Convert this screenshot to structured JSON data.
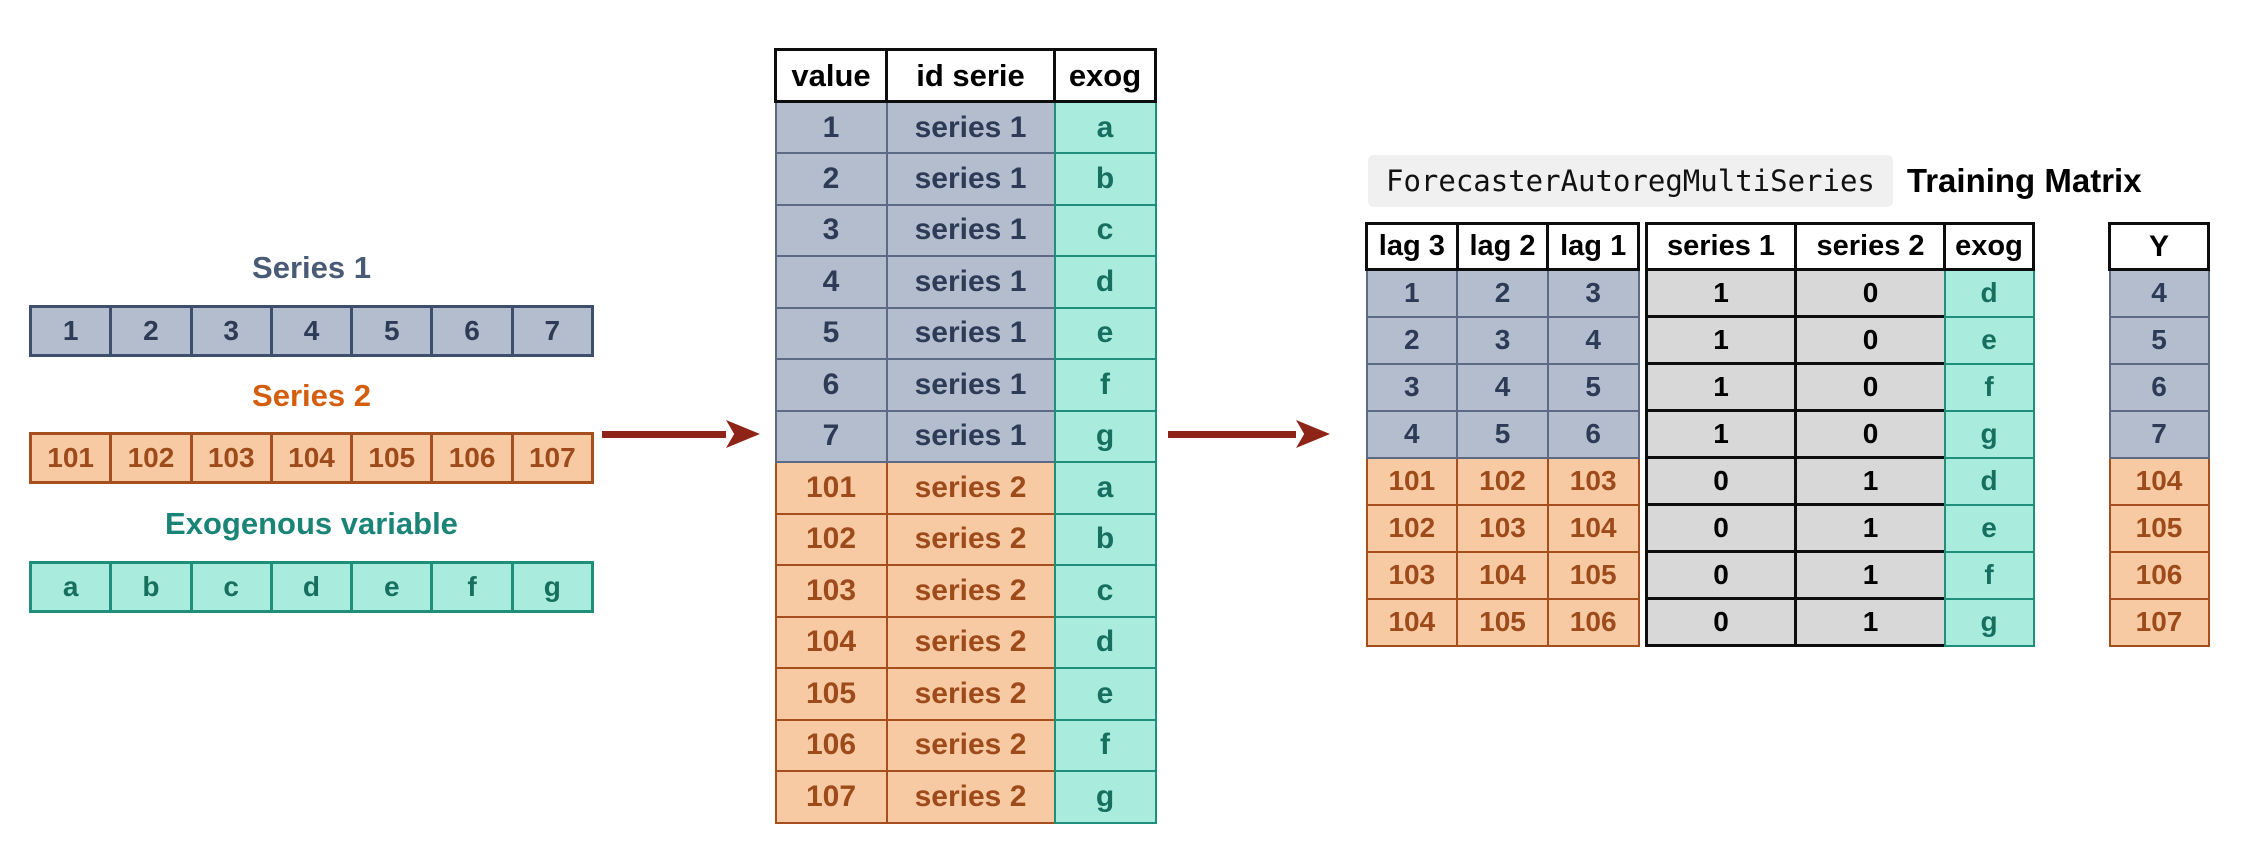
{
  "left_panel": {
    "series1": {
      "title": "Series 1",
      "values": [
        "1",
        "2",
        "3",
        "4",
        "5",
        "6",
        "7"
      ]
    },
    "series2": {
      "title": "Series 2",
      "values": [
        "101",
        "102",
        "103",
        "104",
        "105",
        "106",
        "107"
      ]
    },
    "exog": {
      "title": "Exogenous variable",
      "values": [
        "a",
        "b",
        "c",
        "d",
        "e",
        "f",
        "g"
      ]
    }
  },
  "long_table": {
    "headers": [
      "value",
      "id serie",
      "exog"
    ],
    "rows": [
      {
        "value": "1",
        "id": "series 1",
        "exog": "a",
        "group": "s1"
      },
      {
        "value": "2",
        "id": "series 1",
        "exog": "b",
        "group": "s1"
      },
      {
        "value": "3",
        "id": "series 1",
        "exog": "c",
        "group": "s1"
      },
      {
        "value": "4",
        "id": "series 1",
        "exog": "d",
        "group": "s1"
      },
      {
        "value": "5",
        "id": "series 1",
        "exog": "e",
        "group": "s1"
      },
      {
        "value": "6",
        "id": "series 1",
        "exog": "f",
        "group": "s1"
      },
      {
        "value": "7",
        "id": "series 1",
        "exog": "g",
        "group": "s1"
      },
      {
        "value": "101",
        "id": "series 2",
        "exog": "a",
        "group": "s2"
      },
      {
        "value": "102",
        "id": "series 2",
        "exog": "b",
        "group": "s2"
      },
      {
        "value": "103",
        "id": "series 2",
        "exog": "c",
        "group": "s2"
      },
      {
        "value": "104",
        "id": "series 2",
        "exog": "d",
        "group": "s2"
      },
      {
        "value": "105",
        "id": "series 2",
        "exog": "e",
        "group": "s2"
      },
      {
        "value": "106",
        "id": "series 2",
        "exog": "f",
        "group": "s2"
      },
      {
        "value": "107",
        "id": "series 2",
        "exog": "g",
        "group": "s2"
      }
    ]
  },
  "training": {
    "code_label": "ForecasterAutoregMultiSeries",
    "title": "Training Matrix",
    "matrix_headers": [
      "lag 3",
      "lag 2",
      "lag 1",
      "series 1",
      "series 2",
      "exog"
    ],
    "matrix_rows": [
      {
        "lags": [
          "1",
          "2",
          "3"
        ],
        "series1": "1",
        "series2": "0",
        "exog": "d",
        "group": "s1"
      },
      {
        "lags": [
          "2",
          "3",
          "4"
        ],
        "series1": "1",
        "series2": "0",
        "exog": "e",
        "group": "s1"
      },
      {
        "lags": [
          "3",
          "4",
          "5"
        ],
        "series1": "1",
        "series2": "0",
        "exog": "f",
        "group": "s1"
      },
      {
        "lags": [
          "4",
          "5",
          "6"
        ],
        "series1": "1",
        "series2": "0",
        "exog": "g",
        "group": "s1"
      },
      {
        "lags": [
          "101",
          "102",
          "103"
        ],
        "series1": "0",
        "series2": "1",
        "exog": "d",
        "group": "s2"
      },
      {
        "lags": [
          "102",
          "103",
          "104"
        ],
        "series1": "0",
        "series2": "1",
        "exog": "e",
        "group": "s2"
      },
      {
        "lags": [
          "103",
          "104",
          "105"
        ],
        "series1": "0",
        "series2": "1",
        "exog": "f",
        "group": "s2"
      },
      {
        "lags": [
          "104",
          "105",
          "106"
        ],
        "series1": "0",
        "series2": "1",
        "exog": "g",
        "group": "s2"
      }
    ],
    "y_column": {
      "header": "Y",
      "values": [
        "4",
        "5",
        "6",
        "7",
        "104",
        "105",
        "106",
        "107"
      ],
      "groups": [
        "s1",
        "s1",
        "s1",
        "s1",
        "s2",
        "s2",
        "s2",
        "s2"
      ]
    }
  },
  "icons": {
    "arrow1": "arrow-right-icon",
    "arrow2": "arrow-right-icon"
  },
  "colors": {
    "series1_fill": "#b4bdcd",
    "series1_border": "#3e4f6d",
    "series1_text": "#2d3b57",
    "series1_title": "#4a5b76",
    "series2_fill": "#f8caa4",
    "series2_border": "#a54e1e",
    "series2_text": "#9e4b1b",
    "series2_title": "#d45d0e",
    "exog_fill": "#a9ecdd",
    "exog_border": "#1f8f7b",
    "exog_text": "#17705f",
    "exog_title": "#1a8577",
    "dummy_fill": "#d8d8d8",
    "header_bg": "#ffffff",
    "header_border": "#0d0d0d",
    "arrow": "#8e2318",
    "code_bg": "#f0f0f0"
  }
}
